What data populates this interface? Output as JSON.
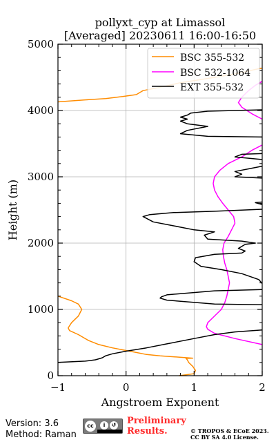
{
  "chart_data": {
    "type": "line",
    "title_line1": "pollyxt_cyp at Limassol",
    "title_line2": "[Averaged] 20230611 16:00-16:50",
    "xlabel": "Angstroem Exponent",
    "ylabel": "Height (m)",
    "xlim": [
      -1,
      2
    ],
    "ylim": [
      0,
      5000
    ],
    "xticks": [
      -1,
      0,
      1,
      2
    ],
    "yticks": [
      0,
      1000,
      2000,
      3000,
      4000,
      5000
    ],
    "grid": true,
    "legend_position": "top-right",
    "series": [
      {
        "name": "BSC 355-532",
        "color": "#ff8c00",
        "points": [
          [
            0.78,
            0
          ],
          [
            1.0,
            30
          ],
          [
            1.02,
            80
          ],
          [
            0.98,
            140
          ],
          [
            0.92,
            200
          ],
          [
            0.9,
            240
          ],
          [
            0.88,
            260
          ],
          [
            0.98,
            265
          ],
          [
            0.5,
            300
          ],
          [
            0.3,
            320
          ],
          [
            0.1,
            360
          ],
          [
            -0.2,
            420
          ],
          [
            -0.4,
            470
          ],
          [
            -0.55,
            530
          ],
          [
            -0.7,
            620
          ],
          [
            -0.83,
            680
          ],
          [
            -0.85,
            720
          ],
          [
            -0.8,
            800
          ],
          [
            -0.7,
            900
          ],
          [
            -0.65,
            1000
          ],
          [
            -0.7,
            1080
          ],
          [
            -0.8,
            1130
          ],
          [
            -1.0,
            1200
          ]
        ]
      },
      {
        "name": "BSC 355-532",
        "color": "#ff8c00",
        "points": [
          [
            -1.0,
            4130
          ],
          [
            -0.6,
            4160
          ],
          [
            -0.3,
            4180
          ],
          [
            -0.05,
            4210
          ],
          [
            0.15,
            4240
          ],
          [
            0.2,
            4270
          ],
          [
            0.25,
            4300
          ],
          [
            0.3,
            4310
          ],
          [
            0.55,
            4360
          ],
          [
            0.8,
            4420
          ],
          [
            1.0,
            4450
          ],
          [
            1.3,
            4500
          ],
          [
            1.7,
            4570
          ],
          [
            1.9,
            4620
          ],
          [
            2.0,
            4640
          ]
        ]
      },
      {
        "name": "BSC 532-1064",
        "color": "#ff00ff",
        "points": [
          [
            2.0,
            470
          ],
          [
            1.6,
            560
          ],
          [
            1.3,
            640
          ],
          [
            1.2,
            700
          ],
          [
            1.18,
            740
          ],
          [
            1.2,
            800
          ],
          [
            1.3,
            900
          ],
          [
            1.4,
            1000
          ],
          [
            1.45,
            1100
          ],
          [
            1.48,
            1200
          ],
          [
            1.5,
            1300
          ],
          [
            1.52,
            1400
          ],
          [
            1.5,
            1500
          ],
          [
            1.48,
            1600
          ],
          [
            1.45,
            1700
          ],
          [
            1.43,
            1800
          ],
          [
            1.42,
            1900
          ],
          [
            1.44,
            2000
          ],
          [
            1.5,
            2100
          ],
          [
            1.55,
            2200
          ],
          [
            1.6,
            2300
          ],
          [
            1.58,
            2400
          ],
          [
            1.5,
            2500
          ],
          [
            1.42,
            2600
          ],
          [
            1.35,
            2700
          ],
          [
            1.3,
            2800
          ],
          [
            1.28,
            2900
          ],
          [
            1.3,
            3000
          ],
          [
            1.38,
            3100
          ],
          [
            1.5,
            3200
          ],
          [
            1.7,
            3300
          ],
          [
            1.85,
            3400
          ],
          [
            2.0,
            3480
          ]
        ]
      },
      {
        "name": "BSC 532-1064",
        "color": "#ff00ff",
        "points": [
          [
            2.0,
            3870
          ],
          [
            1.85,
            3950
          ],
          [
            1.7,
            4050
          ],
          [
            1.65,
            4120
          ],
          [
            1.7,
            4200
          ],
          [
            1.8,
            4300
          ],
          [
            1.9,
            4380
          ],
          [
            2.0,
            4440
          ]
        ]
      },
      {
        "name": "EXT 355-532",
        "color": "#000000",
        "points": [
          [
            -1.0,
            200
          ],
          [
            -0.6,
            220
          ],
          [
            -0.45,
            240
          ],
          [
            -0.35,
            270
          ],
          [
            -0.3,
            300
          ],
          [
            -0.2,
            330
          ],
          [
            0.0,
            370
          ],
          [
            0.3,
            420
          ],
          [
            0.6,
            480
          ],
          [
            1.0,
            560
          ],
          [
            1.3,
            620
          ],
          [
            1.6,
            660
          ],
          [
            2.0,
            690
          ]
        ]
      },
      {
        "name": "EXT 355-532",
        "color": "#000000",
        "points": [
          [
            2.0,
            1070
          ],
          [
            1.3,
            1080
          ],
          [
            0.6,
            1140
          ],
          [
            0.5,
            1170
          ],
          [
            0.52,
            1190
          ],
          [
            0.6,
            1220
          ],
          [
            1.3,
            1280
          ],
          [
            2.0,
            1300
          ]
        ]
      },
      {
        "name": "EXT 355-532",
        "color": "#000000",
        "points": [
          [
            2.0,
            1390
          ],
          [
            1.95,
            1450
          ],
          [
            1.7,
            1540
          ],
          [
            1.4,
            1600
          ],
          [
            1.1,
            1650
          ],
          [
            1.0,
            1720
          ],
          [
            1.02,
            1780
          ],
          [
            1.3,
            1830
          ],
          [
            1.7,
            1850
          ],
          [
            1.75,
            1880
          ],
          [
            1.65,
            1920
          ],
          [
            1.75,
            1980
          ],
          [
            1.9,
            2000
          ],
          [
            1.7,
            2030
          ],
          [
            1.2,
            2060
          ],
          [
            1.15,
            2120
          ],
          [
            1.3,
            2170
          ],
          [
            1.0,
            2200
          ],
          [
            0.7,
            2260
          ],
          [
            0.4,
            2320
          ],
          [
            0.25,
            2400
          ],
          [
            0.35,
            2430
          ],
          [
            0.7,
            2460
          ],
          [
            1.3,
            2480
          ],
          [
            2.0,
            2510
          ]
        ]
      },
      {
        "name": "EXT 355-532",
        "color": "#000000",
        "points": [
          [
            2.0,
            2580
          ],
          [
            1.9,
            2610
          ],
          [
            2.0,
            2620
          ]
        ]
      },
      {
        "name": "EXT 355-532",
        "color": "#000000",
        "points": [
          [
            2.0,
            2980
          ],
          [
            1.6,
            3000
          ],
          [
            1.7,
            3040
          ],
          [
            1.6,
            3080
          ],
          [
            1.8,
            3120
          ],
          [
            2.0,
            3160
          ]
        ]
      },
      {
        "name": "EXT 355-532",
        "color": "#000000",
        "points": [
          [
            2.0,
            3260
          ],
          [
            1.6,
            3300
          ],
          [
            1.7,
            3340
          ],
          [
            2.0,
            3350
          ]
        ]
      },
      {
        "name": "EXT 355-532",
        "color": "#000000",
        "points": [
          [
            2.0,
            3600
          ],
          [
            1.2,
            3610
          ],
          [
            0.8,
            3650
          ],
          [
            0.9,
            3700
          ],
          [
            1.2,
            3760
          ],
          [
            0.9,
            3800
          ],
          [
            0.8,
            3840
          ],
          [
            0.9,
            3870
          ],
          [
            0.8,
            3900
          ],
          [
            0.9,
            3930
          ],
          [
            0.95,
            3960
          ],
          [
            1.2,
            3990
          ],
          [
            2.0,
            4010
          ]
        ]
      }
    ],
    "legend": [
      {
        "label": "BSC 355-532",
        "color": "#ff8c00"
      },
      {
        "label": "BSC 532-1064",
        "color": "#ff00ff"
      },
      {
        "label": "EXT 355-532",
        "color": "#000000"
      }
    ]
  },
  "footer": {
    "version": "Version: 3.6",
    "method": "Method: Raman",
    "prelim_line1": "Preliminary",
    "prelim_line2": "Results.",
    "copyright_line1": "© TROPOS & ECoE 2023.",
    "copyright_line2": "CC BY SA 4.0 License."
  }
}
